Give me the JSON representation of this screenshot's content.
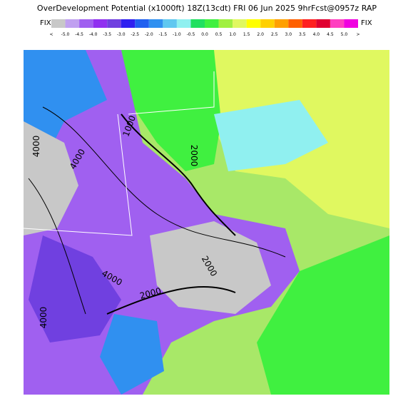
{
  "header": {
    "title": "OverDevelopment Potential  (x1000ft) 18Z(13cdt) FRI 06 Jun 2025  9hrFcst@0957z RAP"
  },
  "legend": {
    "left_label": "FIX",
    "right_label": "FIX",
    "ticks": [
      "<",
      "-5.0",
      "-4.5",
      "-4.0",
      "-3.5",
      "-3.0",
      "-2.5",
      "-2.0",
      "-1.5",
      "-1.0",
      "-0.5",
      "0.0",
      "0.5",
      "1.0",
      "1.5",
      "2.0",
      "2.5",
      "3.0",
      "3.5",
      "4.0",
      "4.5",
      "5.0",
      ">"
    ],
    "colors": [
      "#c8c8c8",
      "#c0a0f0",
      "#a060f0",
      "#9030f0",
      "#7040e0",
      "#3020f0",
      "#2060f0",
      "#3090f0",
      "#60c8f0",
      "#90f0f0",
      "#20e060",
      "#40f040",
      "#a0f040",
      "#e0f860",
      "#ffff00",
      "#ffd000",
      "#ffa000",
      "#ff6000",
      "#ff2020",
      "#e00030",
      "#ff40c0",
      "#f000e0"
    ]
  },
  "map": {
    "contour_labels": [
      "4000",
      "4000",
      "1000",
      "2000",
      "2000",
      "4000",
      "2000",
      "4000"
    ]
  }
}
